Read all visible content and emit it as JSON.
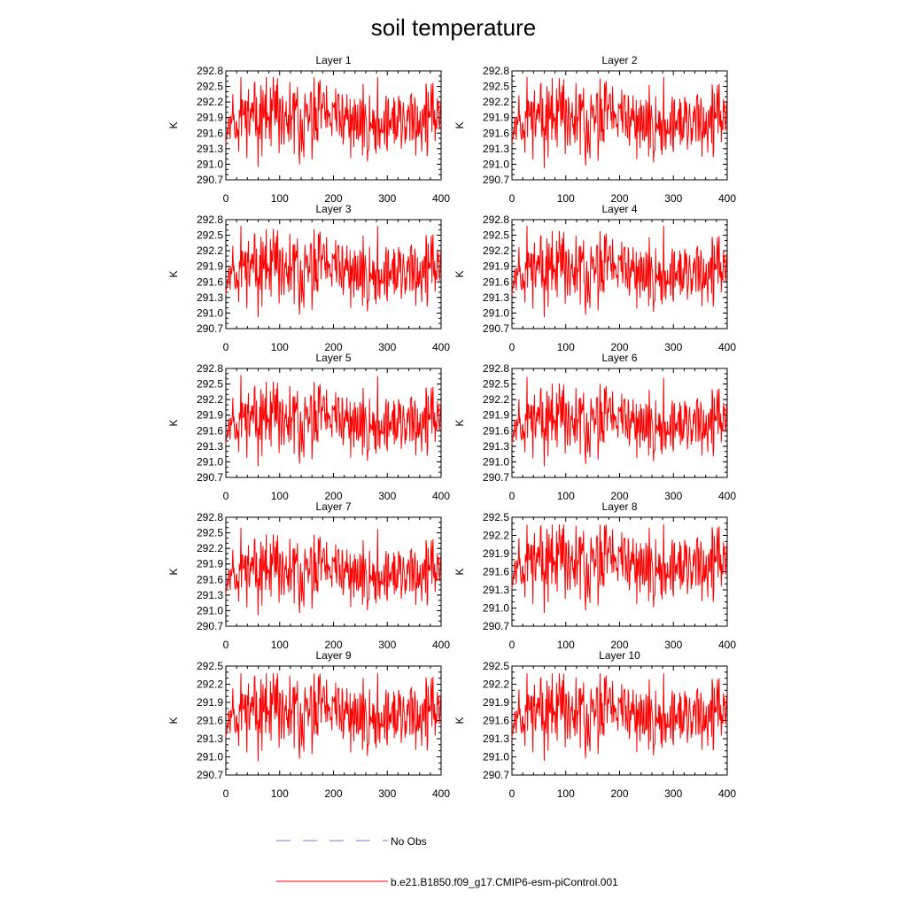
{
  "chart_data": {
    "type": "line",
    "title": "soil temperature",
    "xlim": [
      0,
      400
    ],
    "x_ticks": [
      0,
      100,
      200,
      300,
      400
    ],
    "x_tick_labels": [
      "0",
      "100",
      "200",
      "300",
      "400"
    ],
    "n_points": 400,
    "series_style": {
      "color": "#ff0000"
    },
    "panels": [
      {
        "title": "Layer 1",
        "ylabel": "K",
        "ylim": [
          290.7,
          292.8
        ],
        "y_ticks": [
          "292.8",
          "292.5",
          "292.2",
          "291.9",
          "291.6",
          "291.3",
          "291.0",
          "290.7"
        ],
        "base": 291.8,
        "amp": 1.0,
        "seed": 11
      },
      {
        "title": "Layer 2",
        "ylabel": "K",
        "ylim": [
          290.7,
          292.8
        ],
        "y_ticks": [
          "292.8",
          "292.5",
          "292.2",
          "291.9",
          "291.6",
          "291.3",
          "291.0",
          "290.7"
        ],
        "base": 291.78,
        "amp": 1.0,
        "seed": 11
      },
      {
        "title": "Layer 3",
        "ylabel": "K",
        "ylim": [
          290.7,
          292.8
        ],
        "y_ticks": [
          "292.8",
          "292.5",
          "292.2",
          "291.9",
          "291.6",
          "291.3",
          "291.0",
          "290.7"
        ],
        "base": 291.76,
        "amp": 0.98,
        "seed": 11
      },
      {
        "title": "Layer 4",
        "ylabel": "K",
        "ylim": [
          290.7,
          292.8
        ],
        "y_ticks": [
          "292.8",
          "292.5",
          "292.2",
          "291.9",
          "291.6",
          "291.3",
          "291.0",
          "290.7"
        ],
        "base": 291.74,
        "amp": 0.96,
        "seed": 11
      },
      {
        "title": "Layer 5",
        "ylabel": "K",
        "ylim": [
          290.7,
          292.8
        ],
        "y_ticks": [
          "292.8",
          "292.5",
          "292.2",
          "291.9",
          "291.6",
          "291.3",
          "291.0",
          "290.7"
        ],
        "base": 291.72,
        "amp": 0.94,
        "seed": 11
      },
      {
        "title": "Layer 6",
        "ylabel": "K",
        "ylim": [
          290.7,
          292.8
        ],
        "y_ticks": [
          "292.8",
          "292.5",
          "292.2",
          "291.9",
          "291.6",
          "291.3",
          "291.0",
          "290.7"
        ],
        "base": 291.7,
        "amp": 0.92,
        "seed": 11
      },
      {
        "title": "Layer 7",
        "ylabel": "K",
        "ylim": [
          290.7,
          292.8
        ],
        "y_ticks": [
          "292.8",
          "292.5",
          "292.2",
          "291.9",
          "291.6",
          "291.3",
          "291.0",
          "290.7"
        ],
        "base": 291.68,
        "amp": 0.9,
        "seed": 11
      },
      {
        "title": "Layer 8",
        "ylabel": "K",
        "ylim": [
          290.7,
          292.5
        ],
        "y_ticks": [
          "292.5",
          "292.2",
          "291.9",
          "291.6",
          "291.3",
          "291.0",
          "290.7"
        ],
        "base": 291.67,
        "amp": 0.88,
        "seed": 11
      },
      {
        "title": "Layer 9",
        "ylabel": "K",
        "ylim": [
          290.7,
          292.5
        ],
        "y_ticks": [
          "292.5",
          "292.2",
          "291.9",
          "291.6",
          "291.3",
          "291.0",
          "290.7"
        ],
        "base": 291.66,
        "amp": 0.86,
        "seed": 11
      },
      {
        "title": "Layer 10",
        "ylabel": "K",
        "ylim": [
          290.7,
          292.5
        ],
        "y_ticks": [
          "292.5",
          "292.2",
          "291.9",
          "291.6",
          "291.3",
          "291.0",
          "290.7"
        ],
        "base": 291.65,
        "amp": 0.84,
        "seed": 11
      }
    ],
    "legend": [
      {
        "label": "No Obs",
        "color": "#7777dd",
        "style": "dashed"
      },
      {
        "label": "b.e21.B1850.f09_g17.CMIP6-esm-piControl.001",
        "color": "#ff0000",
        "style": "solid"
      }
    ]
  }
}
